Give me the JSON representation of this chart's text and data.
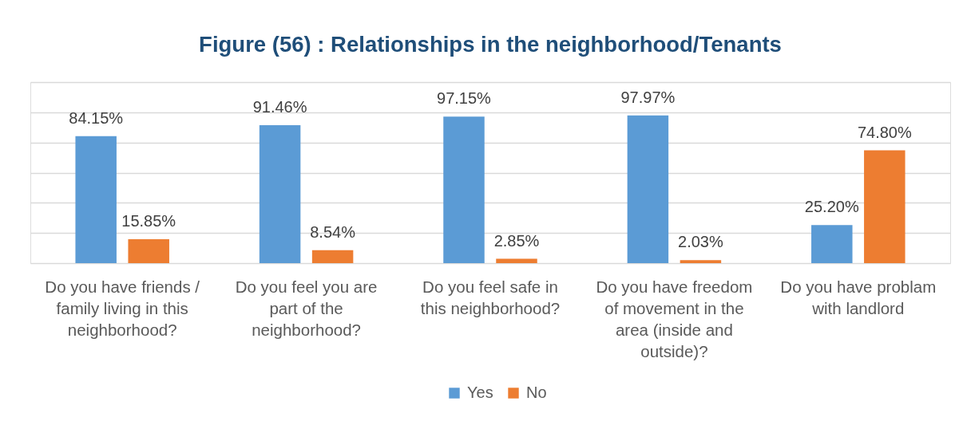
{
  "chart_data": {
    "type": "bar",
    "title": "Figure (56) : Relationships in the neighborhood/Tenants",
    "categories": [
      "Do you have friends / family living in this neighborhood?",
      "Do you feel you are part of the neighborhood?",
      "Do you feel safe in this neighborhood?",
      "Do you have freedom of movement in the area (inside and outside)?",
      "Do you have problam with landlord"
    ],
    "series": [
      {
        "name": "Yes",
        "color": "#5b9bd5",
        "values": [
          84.15,
          91.46,
          97.15,
          97.97,
          25.2
        ],
        "value_labels": [
          "84.15%",
          "91.46%",
          "97.15%",
          "97.97%",
          "25.20%"
        ]
      },
      {
        "name": "No",
        "color": "#ed7d31",
        "values": [
          15.85,
          8.54,
          2.85,
          2.03,
          74.8
        ],
        "value_labels": [
          "15.85%",
          "8.54%",
          "2.85%",
          "2.03%",
          "74.80%"
        ]
      }
    ],
    "ylim": [
      0,
      120
    ],
    "yticks": [
      {
        "value": 0,
        "label": null
      },
      {
        "value": 20,
        "label": null
      },
      {
        "value": 40,
        "label": null
      },
      {
        "value": 60,
        "label": null
      },
      {
        "value": 80,
        "label": null
      },
      {
        "value": 100,
        "label": null
      },
      {
        "value": 120,
        "label": null
      }
    ],
    "grid": "y",
    "legend": "bottom",
    "tick_labels": "x"
  }
}
